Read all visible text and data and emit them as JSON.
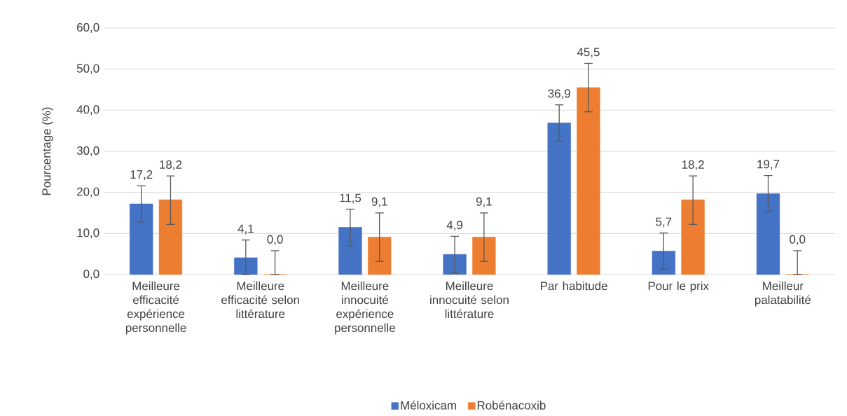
{
  "chart_data": {
    "type": "bar",
    "ylabel": "Pourcentage (%)",
    "categories": [
      "Meilleure efficacité expérience personnelle",
      "Meilleure efficacité selon littérature",
      "Meilleure innocuité expérience personnelle",
      "Meilleure innocuité selon littérature",
      "Par habitude",
      "Pour le prix",
      "Meilleur palatabilité"
    ],
    "series": [
      {
        "name": "Méloxicam",
        "color": "#4472c4",
        "values": [
          17.2,
          4.1,
          11.5,
          4.9,
          36.9,
          5.7,
          19.7
        ],
        "value_labels": [
          "17,2",
          "4,1",
          "11,5",
          "4,9",
          "36,9",
          "5,7",
          "19,7"
        ],
        "errors": [
          [
            12.8,
            21.6
          ],
          [
            0,
            8.4
          ],
          [
            7.0,
            15.9
          ],
          [
            0.5,
            9.3
          ],
          [
            32.5,
            41.3
          ],
          [
            1.3,
            10.1
          ],
          [
            15.3,
            24.1
          ]
        ]
      },
      {
        "name": "Robénacoxib",
        "color": "#ed7d31",
        "values": [
          18.2,
          0.0,
          9.1,
          9.1,
          45.5,
          18.2,
          0.0
        ],
        "value_labels": [
          "18,2",
          "0,0",
          "9,1",
          "9,1",
          "45,5",
          "18,2",
          "0,0"
        ],
        "errors": [
          [
            12.2,
            24.0
          ],
          [
            0,
            5.8
          ],
          [
            3.2,
            15.0
          ],
          [
            3.2,
            15.0
          ],
          [
            39.6,
            51.4
          ],
          [
            12.2,
            24.0
          ],
          [
            0,
            5.8
          ]
        ]
      }
    ],
    "ylim": [
      0,
      60
    ],
    "yticks": [
      {
        "value": 0,
        "label": "0,0"
      },
      {
        "value": 10,
        "label": "10,0"
      },
      {
        "value": 20,
        "label": "20,0"
      },
      {
        "value": 30,
        "label": "30,0"
      },
      {
        "value": 40,
        "label": "40,0"
      },
      {
        "value": 50,
        "label": "50,0"
      },
      {
        "value": 60,
        "label": "60,0"
      }
    ],
    "grid": "y",
    "legend": "bottom"
  }
}
